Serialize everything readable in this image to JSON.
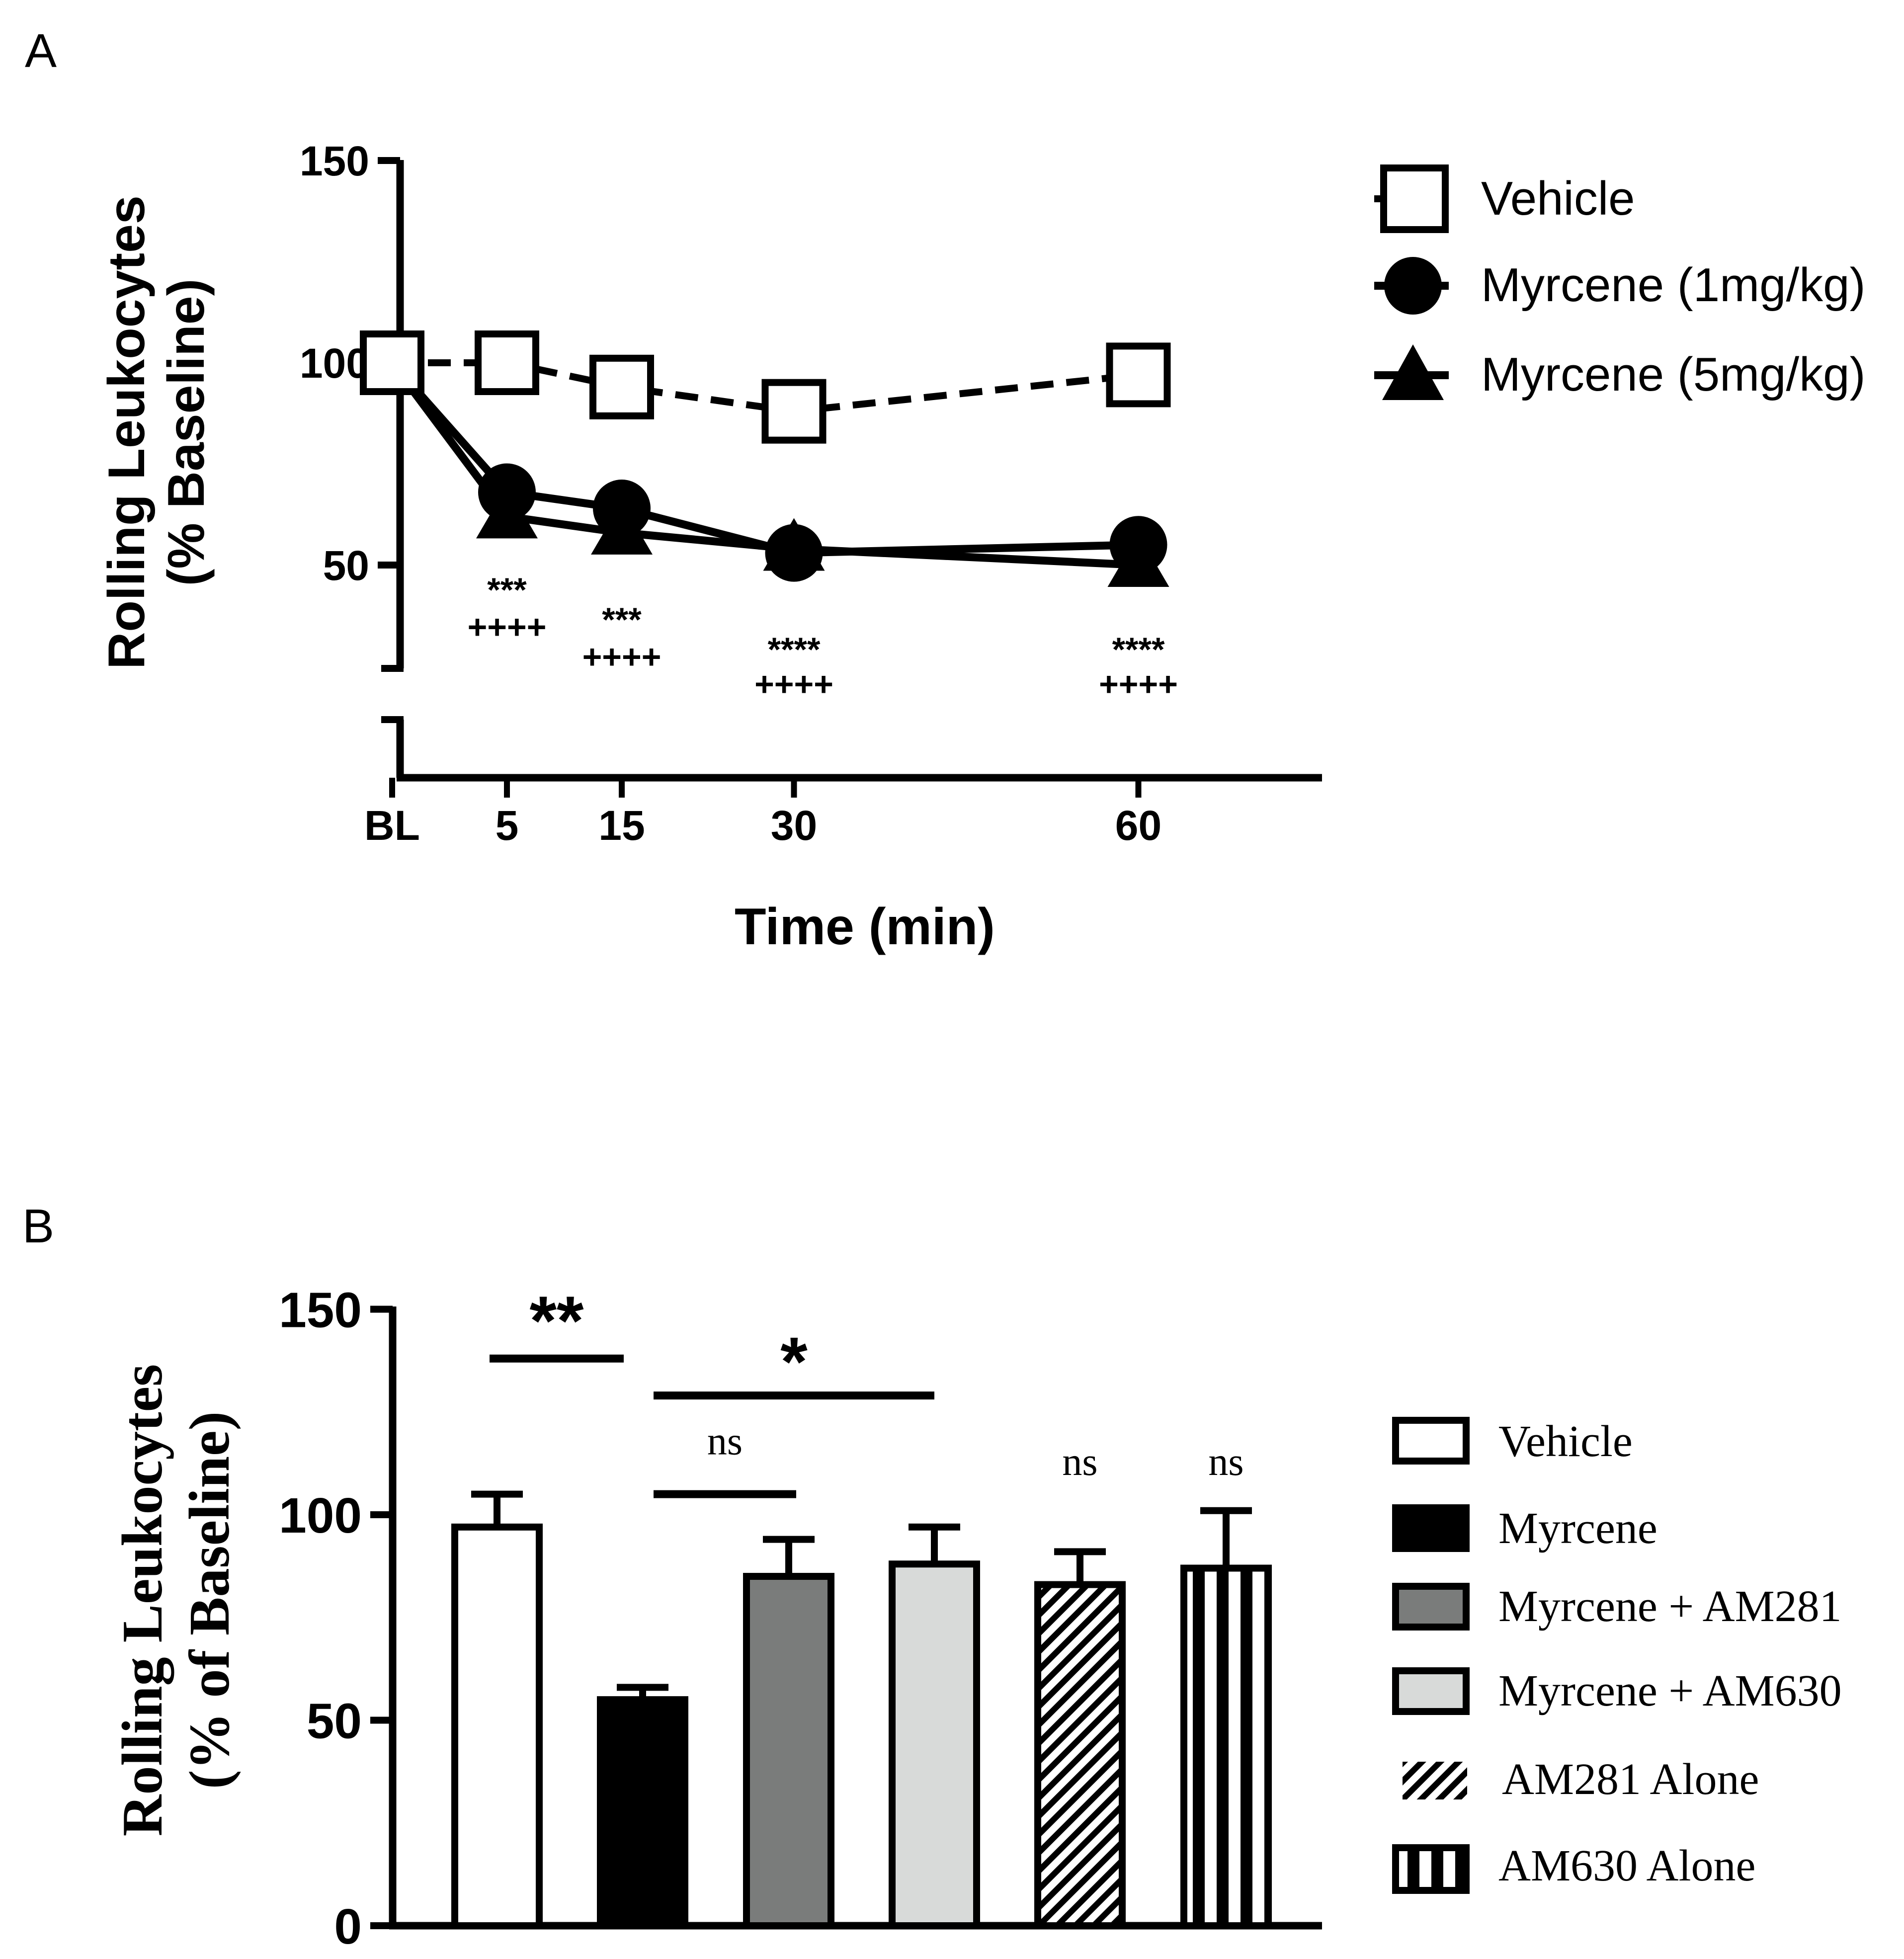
{
  "chart_data": [
    {
      "type": "line",
      "panel_label": "A",
      "title": "",
      "xlabel": "Time (min)",
      "ylabel": "Rolling Leukocytes\n(% Baseline)",
      "ylabel_line1": "Rolling Leukocytes",
      "ylabel_line2": "(% Baseline)",
      "ylim": [
        0,
        150
      ],
      "y_axis_break": [
        25,
        35
      ],
      "y_ticks": [
        50,
        100,
        150
      ],
      "y_tick_labels": [
        "50",
        "100",
        "150"
      ],
      "x_ticks": [
        -5,
        5,
        15,
        30,
        60
      ],
      "x_tick_labels": [
        "BL",
        "5",
        "15",
        "30",
        "60"
      ],
      "legend_position": "right",
      "series": [
        {
          "name": "Vehicle",
          "marker": "open-square",
          "line": "dashed",
          "x": [
            -5,
            5,
            15,
            30,
            60
          ],
          "y": [
            100,
            100,
            94,
            88,
            97
          ]
        },
        {
          "name": "Myrcene (1mg/kg)",
          "marker": "filled-circle",
          "line": "solid",
          "x": [
            -5,
            5,
            15,
            30,
            60
          ],
          "y": [
            100,
            68,
            64,
            53,
            55
          ]
        },
        {
          "name": "Myrcene (5mg/kg)",
          "marker": "filled-triangle",
          "line": "solid",
          "x": [
            -5,
            5,
            15,
            30,
            60
          ],
          "y": [
            100,
            62,
            58,
            54,
            50
          ]
        }
      ],
      "annotations": [
        {
          "x": 5,
          "line1": "***",
          "line2": "++++"
        },
        {
          "x": 15,
          "line1": "***",
          "line2": "++++"
        },
        {
          "x": 30,
          "line1": "****",
          "line2": "++++"
        },
        {
          "x": 60,
          "line1": "****",
          "line2": "++++"
        }
      ]
    },
    {
      "type": "bar",
      "panel_label": "B",
      "title": "",
      "xlabel": "",
      "ylabel": "Rolling Leukocytes\n(% of Baseline)",
      "ylabel_line1": "Rolling Leukocytes",
      "ylabel_line2": "(% of Baseline)",
      "ylim": [
        0,
        150
      ],
      "y_ticks": [
        0,
        50,
        100,
        150
      ],
      "y_tick_labels": [
        "0",
        "50",
        "100",
        "150"
      ],
      "legend_position": "right",
      "categories": [
        "Vehicle",
        "Myrcene",
        "Myrcene + AM281",
        "Myrcene + AM630",
        "AM281 Alone",
        "AM630 Alone"
      ],
      "values": [
        97,
        55,
        85,
        88,
        83,
        87
      ],
      "errors": [
        8,
        3,
        9,
        9,
        8,
        14
      ],
      "fills": [
        "white",
        "black",
        "dark-gray",
        "light-gray",
        "diagonal-hatch",
        "vertical-stripes"
      ],
      "colors": {
        "dark_gray": "#7a7c7b",
        "light_gray": "#d8dad9",
        "black": "#000000",
        "white": "#ffffff"
      },
      "annotations": [
        {
          "text": "**",
          "type": "bracket",
          "from": 0,
          "to": 1,
          "y": 138
        },
        {
          "text": "*",
          "type": "bracket",
          "from": 1,
          "to": 3,
          "y": 129
        },
        {
          "text": "ns",
          "type": "bracket",
          "from": 1,
          "to": 2,
          "y": 105
        },
        {
          "text": "ns",
          "type": "label",
          "at": 4
        },
        {
          "text": "ns",
          "type": "label",
          "at": 5
        }
      ]
    }
  ]
}
